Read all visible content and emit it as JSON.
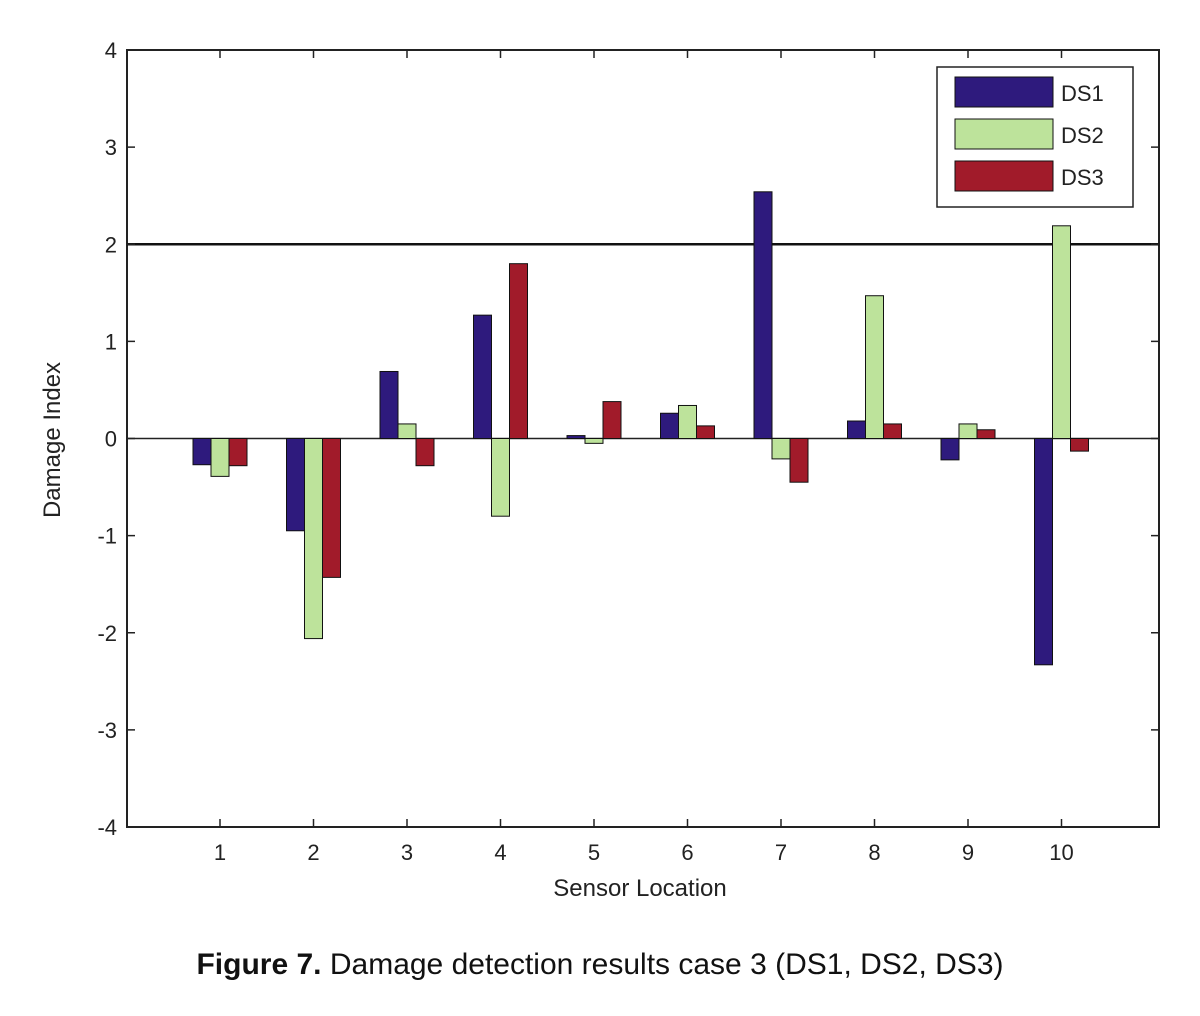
{
  "chart_data": {
    "type": "bar",
    "xlabel": "Sensor Location",
    "ylabel": "Damage Index",
    "categories": [
      "1",
      "2",
      "3",
      "4",
      "5",
      "6",
      "7",
      "8",
      "9",
      "10"
    ],
    "ylim": [
      -4,
      4
    ],
    "yticks": [
      "4",
      "3",
      "2",
      "1",
      "0",
      "-1",
      "-2",
      "-3",
      "-4"
    ],
    "threshold": 2,
    "legend_position": "top-right",
    "series": [
      {
        "name": "DS1",
        "color": "#2e1a7d",
        "values": [
          -0.27,
          -0.95,
          0.69,
          1.27,
          0.03,
          0.26,
          2.54,
          0.18,
          -0.22,
          -2.33
        ]
      },
      {
        "name": "DS2",
        "color": "#bde39b",
        "values": [
          -0.39,
          -2.06,
          0.15,
          -0.8,
          -0.05,
          0.34,
          -0.21,
          1.47,
          0.15,
          2.19
        ]
      },
      {
        "name": "DS3",
        "color": "#a11b2a",
        "values": [
          -0.28,
          -1.43,
          -0.28,
          1.8,
          0.38,
          0.13,
          -0.45,
          0.15,
          0.09,
          -0.13
        ]
      }
    ]
  },
  "caption": {
    "label": "Figure 7.",
    "text": " Damage detection results case 3 (DS1, DS2, DS3)"
  }
}
